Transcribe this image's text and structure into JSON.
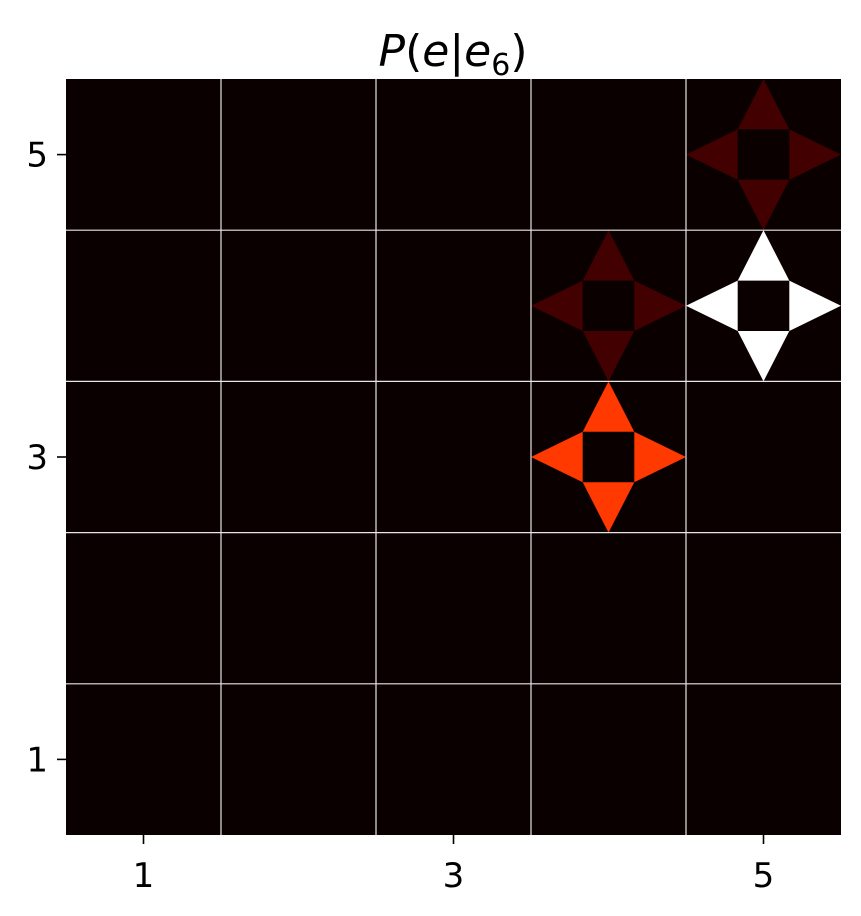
{
  "chart_data": {
    "type": "heatmap",
    "title_parts": {
      "P": "P",
      "open": "(",
      "e": "e",
      "bar": "|",
      "e2": "e",
      "sub": "6",
      "close": ")"
    },
    "xlabel": "",
    "ylabel": "",
    "xlim": [
      0.5,
      5.5
    ],
    "ylim": [
      0.5,
      5.5
    ],
    "xticks": [
      1,
      3,
      5
    ],
    "yticks": [
      1,
      3,
      5
    ],
    "grid": true,
    "background_color": "#0b0000",
    "grid_color": "#e6e6e6",
    "cells": [
      {
        "x": 5,
        "y": 5,
        "values": {
          "up": 0.08,
          "right": 0.08,
          "down": 0.08,
          "left": 0.08
        }
      },
      {
        "x": 4,
        "y": 4,
        "values": {
          "up": 0.08,
          "right": 0.08,
          "down": 0.08,
          "left": 0.08
        }
      },
      {
        "x": 5,
        "y": 4,
        "values": {
          "up": 1.0,
          "right": 1.0,
          "down": 1.0,
          "left": 1.0
        }
      },
      {
        "x": 4,
        "y": 3,
        "values": {
          "up": 0.45,
          "right": 0.45,
          "down": 0.45,
          "left": 0.45
        }
      }
    ]
  }
}
